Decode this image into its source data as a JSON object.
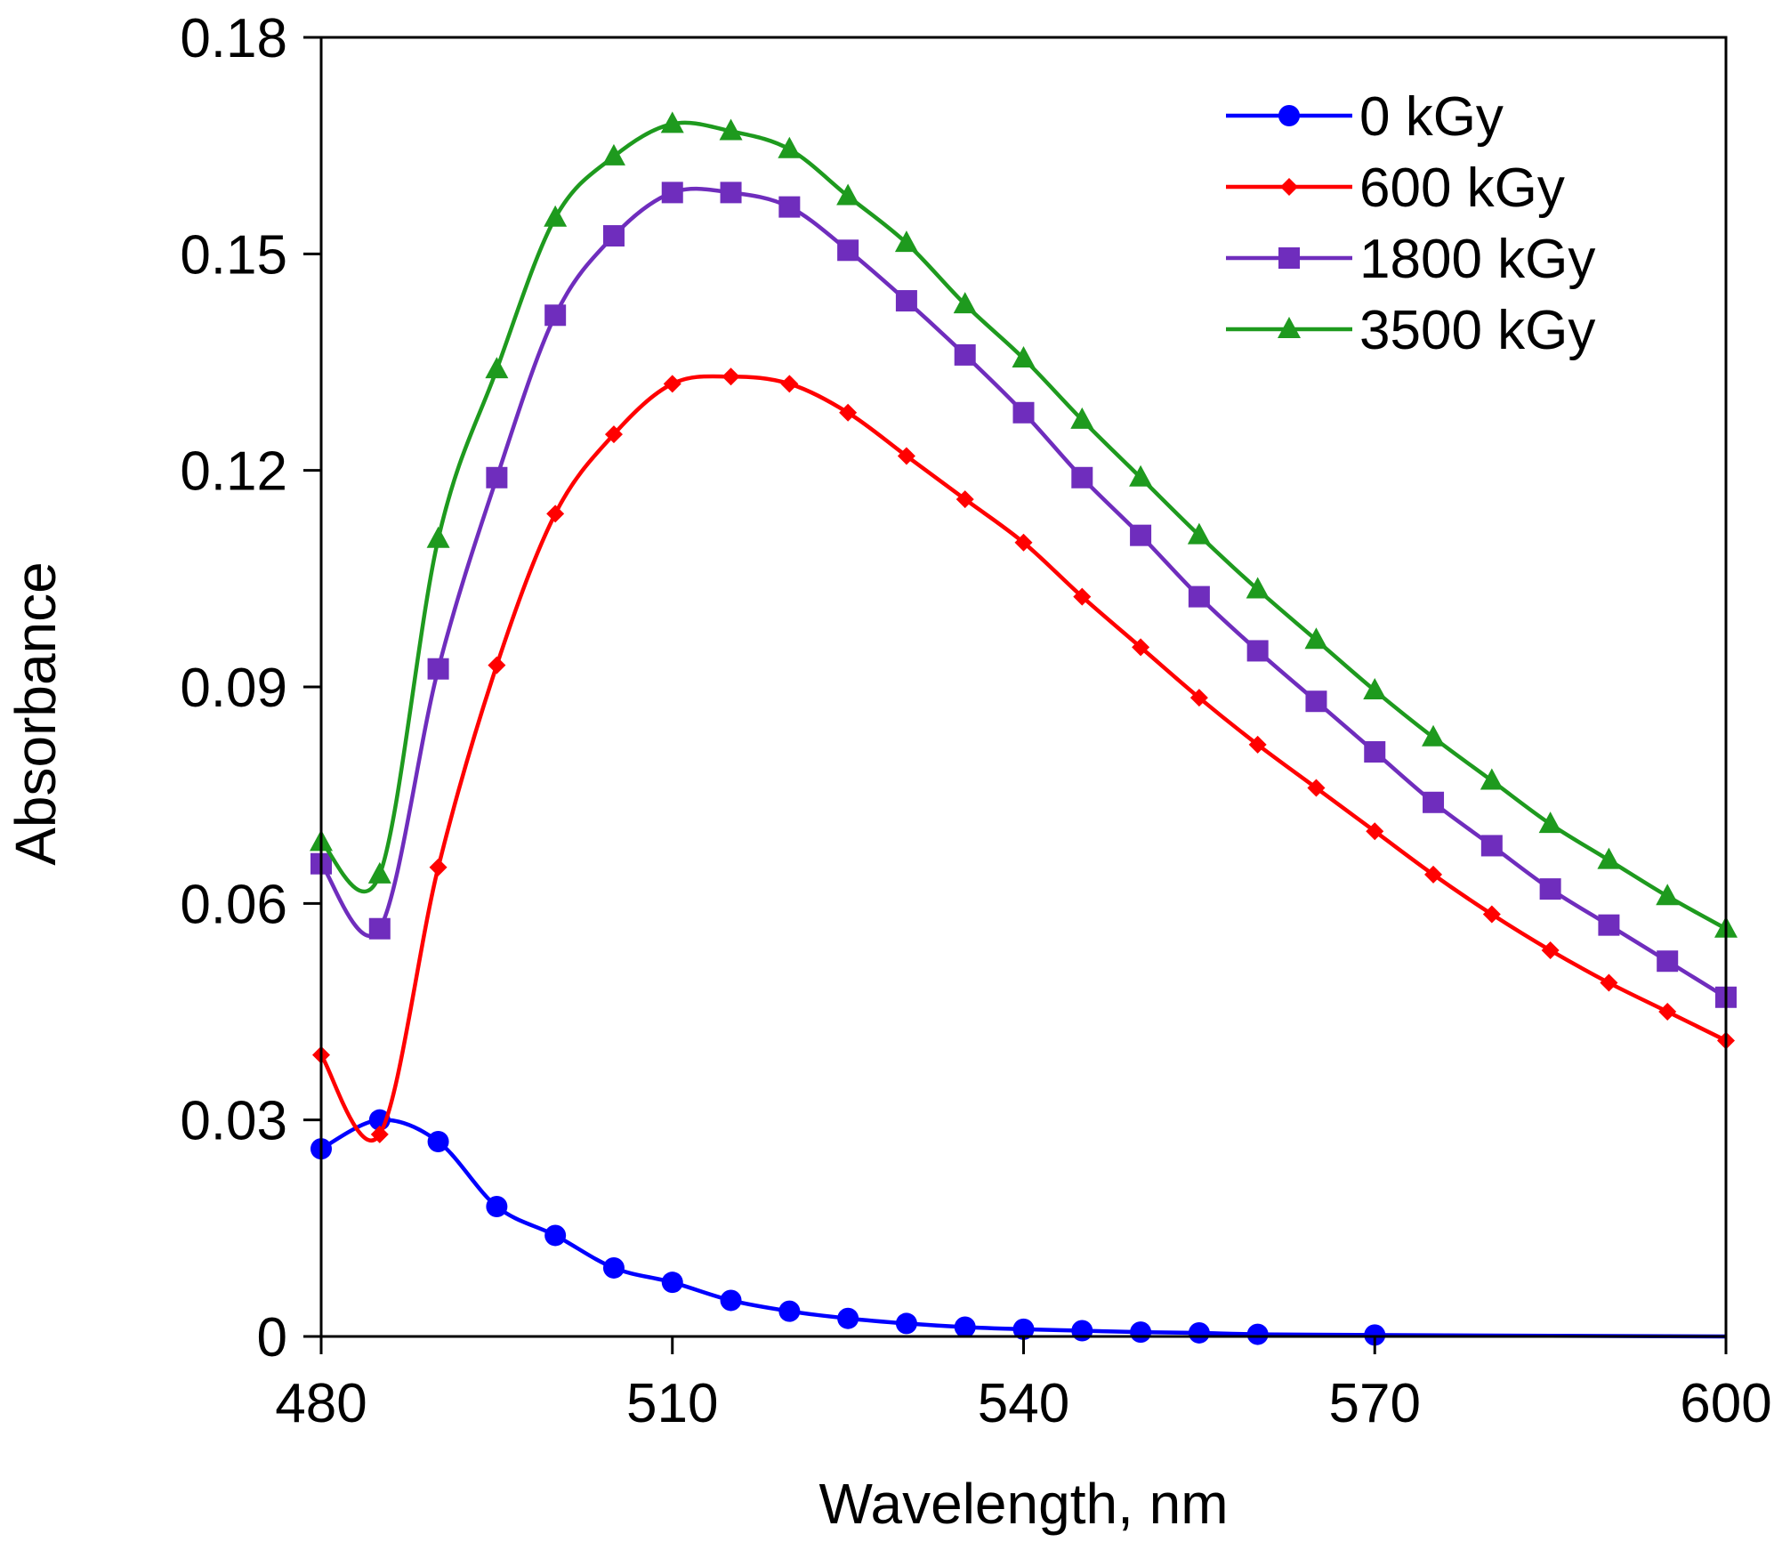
{
  "chart_data": {
    "type": "line",
    "title": "",
    "xlabel": "Wavelength, nm",
    "ylabel": "Absorbance",
    "xlim": [
      480,
      600
    ],
    "ylim": [
      0,
      0.18
    ],
    "xticks": [
      480,
      510,
      540,
      570,
      600
    ],
    "xtick_labels": [
      "480",
      "510",
      "540",
      "570",
      "600"
    ],
    "yticks": [
      0,
      0.03,
      0.06,
      0.09,
      0.12,
      0.15,
      0.18
    ],
    "ytick_labels": [
      "0",
      "0.03",
      "0.06",
      "0.09",
      "0.12",
      "0.15",
      "0.18"
    ],
    "grid": false,
    "legend_position": "top-right",
    "series": [
      {
        "name": "0 kGy",
        "color": "#0000ff",
        "marker": "circle",
        "x": [
          480,
          485,
          490,
          495,
          500,
          505,
          510,
          515,
          520,
          525,
          530,
          535,
          540,
          545,
          550,
          555,
          560,
          570
        ],
        "y": [
          0.026,
          0.03,
          0.027,
          0.018,
          0.014,
          0.0095,
          0.0075,
          0.005,
          0.0035,
          0.0025,
          0.0018,
          0.0013,
          0.001,
          0.0008,
          0.0006,
          0.0005,
          0.0003,
          0.0002
        ],
        "line_extension": [
          [
            570,
            0.0002
          ],
          [
            600,
            0.0
          ]
        ]
      },
      {
        "name": "600 kGy",
        "color": "#ff0000",
        "marker": "diamond",
        "x": [
          480,
          485,
          490,
          495,
          500,
          505,
          510,
          515,
          520,
          525,
          530,
          535,
          540,
          545,
          550,
          555,
          560,
          565,
          570,
          575,
          580,
          585,
          590,
          595,
          600
        ],
        "y": [
          0.039,
          0.028,
          0.065,
          0.093,
          0.114,
          0.125,
          0.132,
          0.133,
          0.132,
          0.128,
          0.122,
          0.116,
          0.11,
          0.1025,
          0.0955,
          0.0885,
          0.082,
          0.076,
          0.07,
          0.064,
          0.0585,
          0.0535,
          0.049,
          0.045,
          0.041
        ]
      },
      {
        "name": "1800 kGy",
        "color": "#6f2dbd",
        "marker": "square",
        "x": [
          480,
          485,
          490,
          495,
          500,
          505,
          510,
          515,
          520,
          525,
          530,
          535,
          540,
          545,
          550,
          555,
          560,
          565,
          570,
          575,
          580,
          585,
          590,
          595,
          600
        ],
        "y": [
          0.0655,
          0.0565,
          0.0925,
          0.119,
          0.1415,
          0.1525,
          0.1585,
          0.1585,
          0.1565,
          0.1505,
          0.1435,
          0.136,
          0.128,
          0.119,
          0.111,
          0.1025,
          0.095,
          0.088,
          0.081,
          0.074,
          0.068,
          0.062,
          0.057,
          0.052,
          0.047
        ]
      },
      {
        "name": "3500 kGy",
        "color": "#1e9a1e",
        "marker": "triangle",
        "x": [
          480,
          485,
          490,
          495,
          500,
          505,
          510,
          515,
          520,
          525,
          530,
          535,
          540,
          545,
          550,
          555,
          560,
          565,
          570,
          575,
          580,
          585,
          590,
          595,
          600
        ],
        "y": [
          0.0685,
          0.064,
          0.1105,
          0.134,
          0.155,
          0.1635,
          0.168,
          0.167,
          0.1645,
          0.158,
          0.1515,
          0.143,
          0.1355,
          0.127,
          0.119,
          0.111,
          0.1035,
          0.0965,
          0.0895,
          0.083,
          0.077,
          0.071,
          0.066,
          0.061,
          0.0565
        ]
      }
    ]
  }
}
